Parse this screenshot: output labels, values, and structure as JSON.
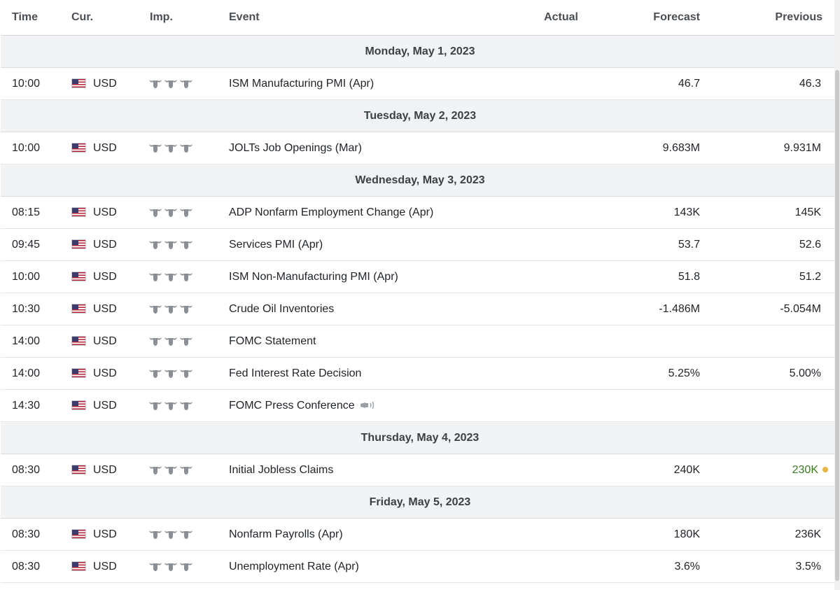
{
  "headers": {
    "time": "Time",
    "currency": "Cur.",
    "importance": "Imp.",
    "event": "Event",
    "actual": "Actual",
    "forecast": "Forecast",
    "previous": "Previous"
  },
  "icons": {
    "flag": "us-flag-icon",
    "importance": "bull-icon",
    "speech": "speaker-icon",
    "status_dot": "status-dot-icon"
  },
  "colors": {
    "positive": "#3a7d22",
    "dot": "#e7b54a",
    "day_row_bg": "#f2f3f4"
  },
  "days": [
    {
      "date": "Monday, May 1, 2023",
      "events": [
        {
          "time": "10:00",
          "currency": "USD",
          "importance": 3,
          "event": "ISM Manufacturing PMI (Apr)",
          "actual": "",
          "forecast": "46.7",
          "previous": "46.3"
        }
      ]
    },
    {
      "date": "Tuesday, May 2, 2023",
      "events": [
        {
          "time": "10:00",
          "currency": "USD",
          "importance": 3,
          "event": "JOLTs Job Openings (Mar)",
          "actual": "",
          "forecast": "9.683M",
          "previous": "9.931M"
        }
      ]
    },
    {
      "date": "Wednesday, May 3, 2023",
      "events": [
        {
          "time": "08:15",
          "currency": "USD",
          "importance": 3,
          "event": "ADP Nonfarm Employment Change (Apr)",
          "actual": "",
          "forecast": "143K",
          "previous": "145K"
        },
        {
          "time": "09:45",
          "currency": "USD",
          "importance": 3,
          "event": "Services PMI (Apr)",
          "actual": "",
          "forecast": "53.7",
          "previous": "52.6"
        },
        {
          "time": "10:00",
          "currency": "USD",
          "importance": 3,
          "event": "ISM Non-Manufacturing PMI (Apr)",
          "actual": "",
          "forecast": "51.8",
          "previous": "51.2"
        },
        {
          "time": "10:30",
          "currency": "USD",
          "importance": 3,
          "event": "Crude Oil Inventories",
          "actual": "",
          "forecast": "-1.486M",
          "previous": "-5.054M"
        },
        {
          "time": "14:00",
          "currency": "USD",
          "importance": 3,
          "event": "FOMC Statement",
          "actual": "",
          "forecast": "",
          "previous": ""
        },
        {
          "time": "14:00",
          "currency": "USD",
          "importance": 3,
          "event": "Fed Interest Rate Decision",
          "actual": "",
          "forecast": "5.25%",
          "previous": "5.00%"
        },
        {
          "time": "14:30",
          "currency": "USD",
          "importance": 3,
          "event": "FOMC Press Conference",
          "speech": true,
          "actual": "",
          "forecast": "",
          "previous": ""
        }
      ]
    },
    {
      "date": "Thursday, May 4, 2023",
      "events": [
        {
          "time": "08:30",
          "currency": "USD",
          "importance": 3,
          "event": "Initial Jobless Claims",
          "actual": "",
          "forecast": "240K",
          "previous": "230K",
          "previous_color": "green",
          "previous_dot": true
        }
      ]
    },
    {
      "date": "Friday, May 5, 2023",
      "events": [
        {
          "time": "08:30",
          "currency": "USD",
          "importance": 3,
          "event": "Nonfarm Payrolls (Apr)",
          "actual": "",
          "forecast": "180K",
          "previous": "236K"
        },
        {
          "time": "08:30",
          "currency": "USD",
          "importance": 3,
          "event": "Unemployment Rate (Apr)",
          "actual": "",
          "forecast": "3.6%",
          "previous": "3.5%"
        }
      ]
    }
  ]
}
